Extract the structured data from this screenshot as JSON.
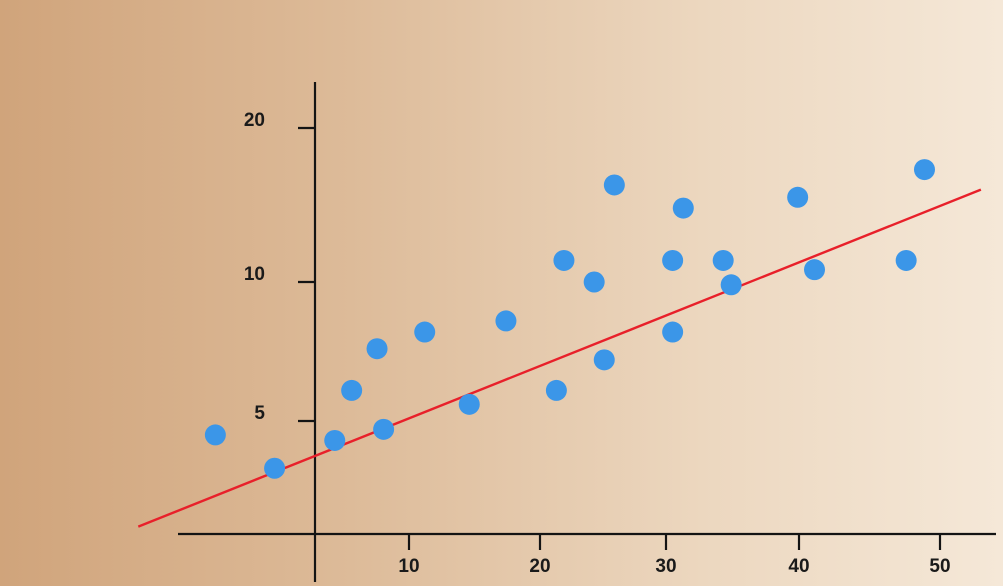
{
  "chart_data": {
    "type": "scatter",
    "title": "",
    "xlabel": "",
    "ylabel": "",
    "x_ticks": [
      10,
      20,
      30,
      40,
      50
    ],
    "y_ticks": [
      5,
      10,
      20
    ],
    "x": [
      -10.6,
      -4.3,
      2.1,
      3.9,
      6.6,
      7.3,
      11.2,
      14.6,
      17.4,
      21.3,
      21.9,
      24.3,
      25.1,
      25.9,
      30.5,
      30.5,
      31.3,
      34.3,
      34.9,
      39.9,
      41.1,
      47.6,
      48.9
    ],
    "y": [
      4.5,
      3.3,
      4.3,
      6.1,
      7.6,
      4.7,
      8.2,
      5.6,
      8.6,
      6.1,
      11.4,
      10.0,
      7.2,
      16.3,
      11.4,
      8.2,
      14.8,
      11.4,
      9.9,
      15.5,
      10.8,
      11.4,
      17.3
    ],
    "trendline": {
      "x": [
        -18.8,
        52.9
      ],
      "y": [
        1.2,
        16.0
      ]
    },
    "grid": false,
    "legend": "none",
    "colors": {
      "point": "#3b96e8",
      "trendline": "#e8202a",
      "axis": "#141414"
    }
  }
}
